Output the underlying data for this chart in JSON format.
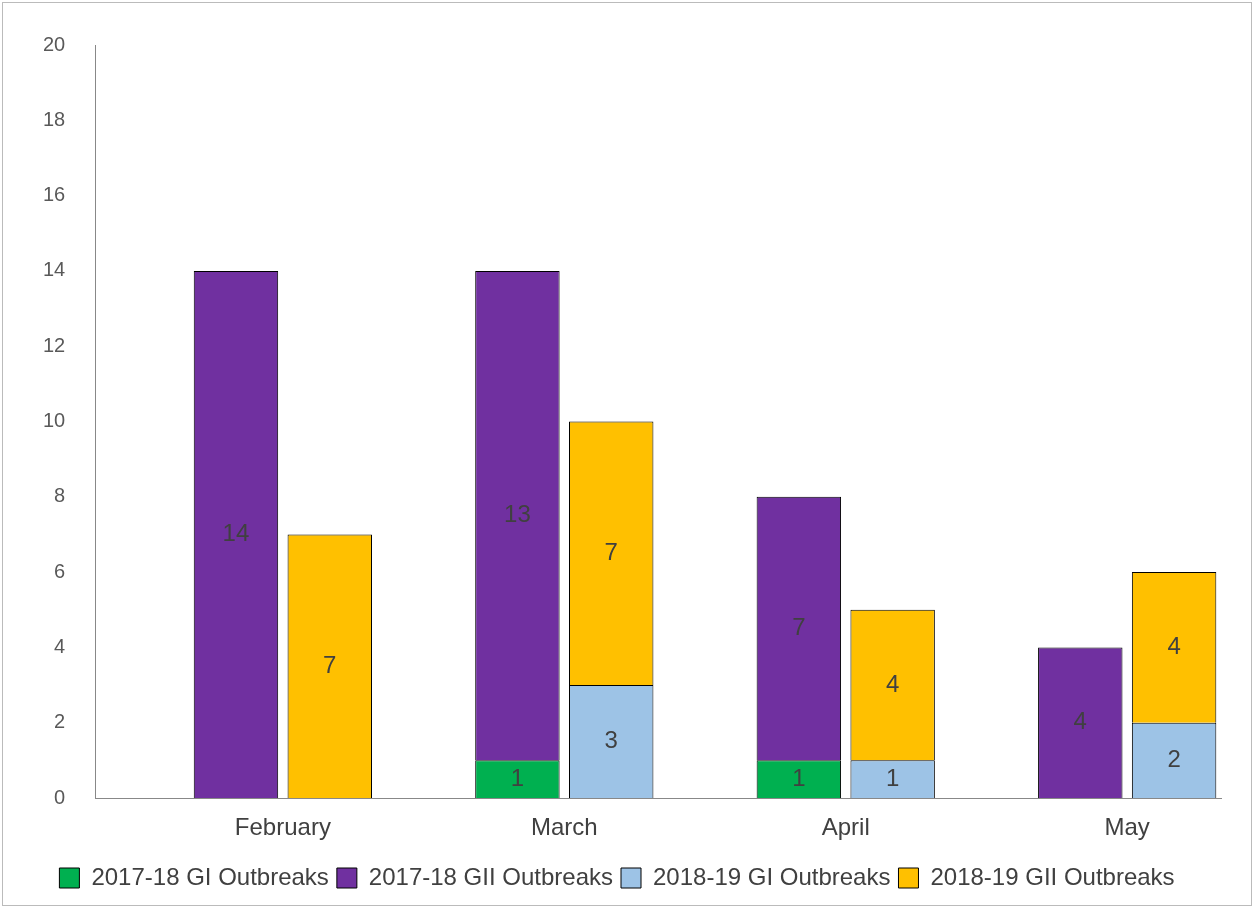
{
  "chart_data": {
    "type": "bar",
    "stacked": true,
    "categories": [
      null,
      "February",
      null,
      null,
      "March",
      null,
      null,
      "April",
      null,
      null,
      "May",
      null
    ],
    "series": [
      {
        "name": "2017-18 GI Outbreaks",
        "color": "#00b050",
        "values": [
          null,
          null,
          null,
          null,
          1,
          null,
          null,
          1,
          null,
          null,
          null,
          null
        ]
      },
      {
        "name": "2017-18 GII Outbreaks",
        "color": "#7030a0",
        "values": [
          null,
          14,
          null,
          null,
          13,
          null,
          null,
          7,
          null,
          null,
          4,
          null
        ]
      },
      {
        "name": "2018-19 GI Outbreaks",
        "color": "#9dc3e6",
        "values": [
          null,
          null,
          null,
          null,
          null,
          3,
          null,
          null,
          1,
          null,
          null,
          2
        ]
      },
      {
        "name": "2018-19 GII Outbreaks",
        "color": "#ffc000",
        "values": [
          null,
          null,
          7,
          null,
          null,
          7,
          null,
          null,
          4,
          null,
          null,
          4
        ]
      }
    ],
    "ylim": [
      0,
      20
    ],
    "yticks": [
      0,
      2,
      4,
      6,
      8,
      10,
      12,
      14,
      16,
      18,
      20
    ],
    "grid": false,
    "legend": "bottom",
    "data_labels": true
  }
}
